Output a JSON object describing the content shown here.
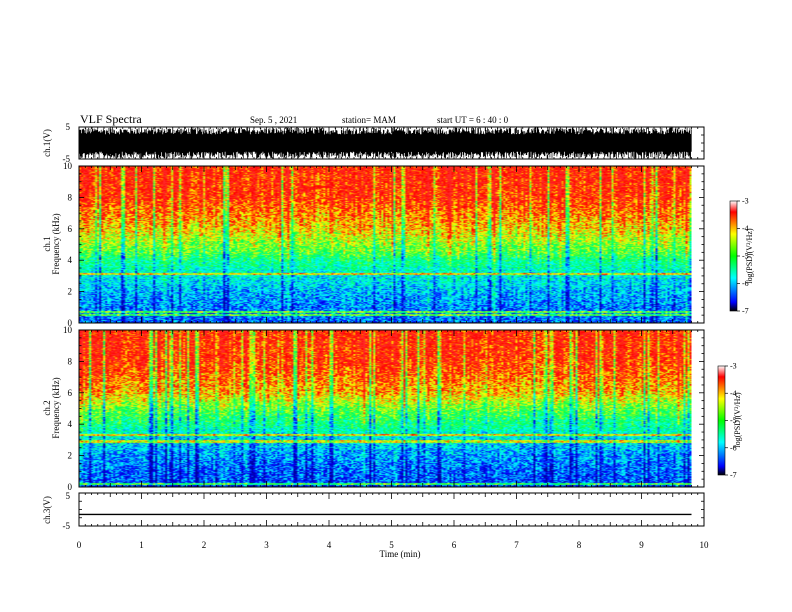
{
  "header": {
    "title": "VLF Spectra",
    "date": "Sep. 5 , 2021",
    "station": "station= MAM",
    "start": "start  UT =   6 : 40 : 0"
  },
  "chart_data": [
    {
      "type": "line",
      "panel": "ch1-waveform",
      "ylabel": "ch.1(V)",
      "ylim": [
        -5,
        5
      ],
      "yticks": [
        "5",
        "-5"
      ],
      "color": "#000000",
      "note_series": "dense black noise waveform across 0-9.8 min"
    },
    {
      "type": "heatmap",
      "panel": "ch1-spectrogram",
      "ylabel": "ch.1\nFrequency (kHz)",
      "ylim": [
        0,
        10
      ],
      "yticks": [
        "0",
        "2",
        "4",
        "6",
        "8",
        "10"
      ],
      "xlim": [
        0,
        10
      ],
      "data_extent_min": 9.8,
      "colorbar": {
        "label": "log(PSD)(V²/Hz)",
        "ticks": [
          "-3",
          "-4",
          "-5",
          "-6",
          "-7"
        ],
        "range": [
          -7,
          -3
        ]
      },
      "profile_kHz_to_logPSD": [
        [
          0,
          -6.2
        ],
        [
          1,
          -6.1
        ],
        [
          2,
          -5.9
        ],
        [
          3,
          -5.6
        ],
        [
          4,
          -5.2
        ],
        [
          4.5,
          -4.8
        ],
        [
          6,
          -4.1
        ],
        [
          8,
          -3.5
        ],
        [
          10,
          -3.4
        ]
      ],
      "lines_kHz": [
        0.5,
        0.7,
        3.1
      ]
    },
    {
      "type": "heatmap",
      "panel": "ch2-spectrogram",
      "ylabel": "ch.2\nFrequency (kHz)",
      "ylim": [
        0,
        10
      ],
      "yticks": [
        "0",
        "2",
        "4",
        "6",
        "8",
        "10"
      ],
      "xlim": [
        0,
        10
      ],
      "data_extent_min": 9.8,
      "colorbar": {
        "label": "log(PSD)(V²/Hz)",
        "ticks": [
          "-3",
          "-4",
          "-5",
          "-6",
          "-7"
        ],
        "range": [
          -7,
          -3
        ]
      },
      "profile_kHz_to_logPSD": [
        [
          0,
          -6.3
        ],
        [
          1,
          -6.2
        ],
        [
          2,
          -6.0
        ],
        [
          3,
          -5.7
        ],
        [
          4,
          -5.2
        ],
        [
          5,
          -4.7
        ],
        [
          6,
          -4.0
        ],
        [
          8,
          -3.5
        ],
        [
          10,
          -3.4
        ]
      ],
      "lines_kHz": [
        0.2,
        2.9,
        3.3
      ]
    },
    {
      "type": "line",
      "panel": "ch3-waveform",
      "ylabel": "ch.3(V)",
      "ylim": [
        -5,
        5
      ],
      "yticks": [
        "5",
        "-5"
      ],
      "x": [
        0,
        9.8
      ],
      "y": [
        -1.5,
        -1.5
      ],
      "color": "#000000"
    }
  ],
  "xaxis": {
    "xlabel": "Time  (min)",
    "xlim": [
      0,
      10
    ],
    "ticks": [
      "0",
      "1",
      "2",
      "3",
      "4",
      "5",
      "6",
      "7",
      "8",
      "9",
      "10"
    ]
  }
}
